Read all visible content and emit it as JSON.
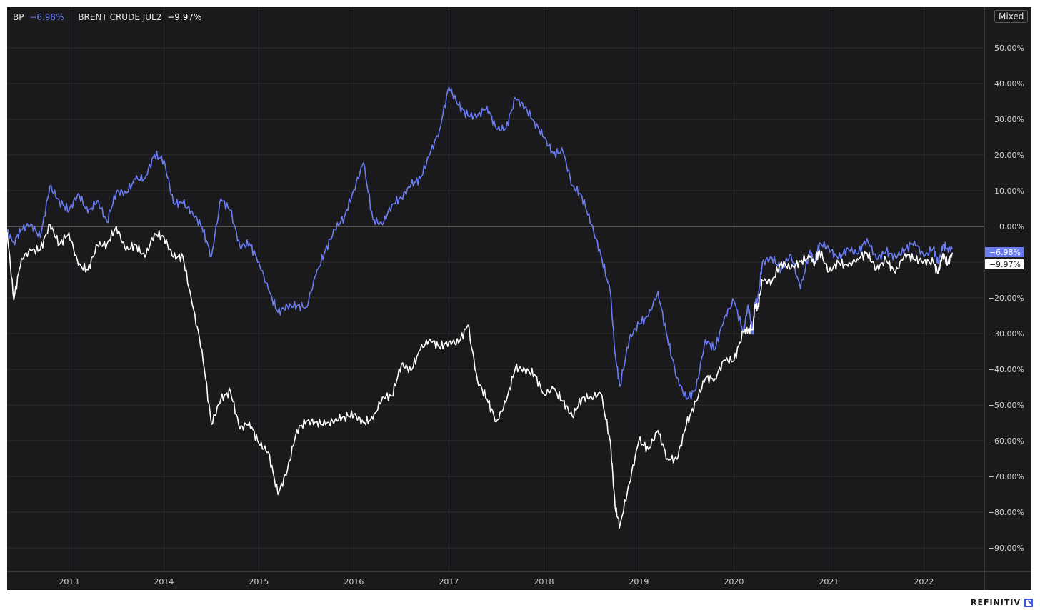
{
  "legend": {
    "bp_label": "BP",
    "bp_value": "−6.98%",
    "brent_label": "BRENT CRUDE JUL2",
    "brent_value": "−9.97%"
  },
  "controls": {
    "mode_label": "Mixed"
  },
  "brand": {
    "name": "REFINITIV"
  },
  "colors": {
    "background": "#1a1a1c",
    "bp": "#6b7cf0",
    "brent": "#ffffff",
    "grid": "#2e2e31"
  },
  "chart_data": {
    "type": "line",
    "y_unit": "%",
    "ylim": [
      -100,
      60
    ],
    "xlim": [
      2012.35,
      2022.5
    ],
    "y_ticks": [
      50,
      40,
      30,
      20,
      10,
      0,
      -10,
      -20,
      -30,
      -40,
      -50,
      -60,
      -70,
      -80,
      -90
    ],
    "y_tick_labels": [
      "50.00%",
      "40.00%",
      "30.00%",
      "20.00%",
      "10.00%",
      "0.00%",
      "−10.00%",
      "−20.00%",
      "−30.00%",
      "−40.00%",
      "−50.00%",
      "−60.00%",
      "−70.00%",
      "−80.00%",
      "−90.00%"
    ],
    "x_ticks": [
      "2013",
      "2014",
      "2015",
      "2016",
      "2017",
      "2018",
      "2019",
      "2020",
      "2021",
      "2022"
    ],
    "grid": true,
    "legend_position": "top-left",
    "last_value_tags": [
      {
        "series": "BP",
        "label": "−6.98%",
        "value": -6.98
      },
      {
        "series": "BRENT CRUDE JUL2",
        "label": "−9.97%",
        "value": -9.97
      }
    ],
    "series": [
      {
        "name": "BP",
        "color": "#6b7cf0",
        "x": [
          2012.35,
          2012.42,
          2012.5,
          2012.6,
          2012.7,
          2012.8,
          2012.9,
          2013.0,
          2013.1,
          2013.2,
          2013.3,
          2013.4,
          2013.5,
          2013.6,
          2013.7,
          2013.8,
          2013.9,
          2014.0,
          2014.1,
          2014.2,
          2014.3,
          2014.4,
          2014.5,
          2014.6,
          2014.7,
          2014.8,
          2014.9,
          2015.0,
          2015.1,
          2015.2,
          2015.3,
          2015.4,
          2015.5,
          2015.6,
          2015.7,
          2015.8,
          2015.9,
          2016.0,
          2016.1,
          2016.2,
          2016.3,
          2016.4,
          2016.5,
          2016.6,
          2016.7,
          2016.8,
          2016.9,
          2017.0,
          2017.1,
          2017.2,
          2017.3,
          2017.4,
          2017.5,
          2017.6,
          2017.7,
          2017.8,
          2017.9,
          2018.0,
          2018.1,
          2018.2,
          2018.3,
          2018.4,
          2018.5,
          2018.6,
          2018.7,
          2018.75,
          2018.8,
          2018.9,
          2019.0,
          2019.1,
          2019.2,
          2019.3,
          2019.4,
          2019.5,
          2019.6,
          2019.7,
          2019.8,
          2019.9,
          2020.0,
          2020.1,
          2020.15,
          2020.2,
          2020.22,
          2020.25,
          2020.3,
          2020.4,
          2020.5,
          2020.6,
          2020.7,
          2020.8,
          2020.85,
          2020.9,
          2021.0,
          2021.1,
          2021.2,
          2021.3,
          2021.4,
          2021.5,
          2021.6,
          2021.7,
          2021.8,
          2021.9,
          2022.0,
          2022.1,
          2022.15,
          2022.2,
          2022.25,
          2022.3
        ],
        "y": [
          -3,
          -6,
          2,
          0,
          -1,
          8,
          7,
          5,
          10,
          6,
          4,
          2,
          8,
          12,
          14,
          12,
          20,
          16,
          10,
          6,
          5,
          -2,
          -10,
          10,
          4,
          -3,
          -8,
          -10,
          -18,
          -23,
          -20,
          -25,
          -22,
          -16,
          -4,
          0,
          2,
          10,
          15,
          5,
          0,
          8,
          6,
          10,
          15,
          20,
          30,
          36,
          34,
          30,
          32,
          36,
          25,
          28,
          33,
          36,
          30,
          25,
          20,
          18,
          14,
          8,
          3,
          -10,
          -20,
          -35,
          -45,
          -28,
          -30,
          -25,
          -20,
          -30,
          -40,
          -50,
          -45,
          -35,
          -32,
          -25,
          -20,
          -30,
          -25,
          -28,
          -22,
          -18,
          -12,
          -10,
          -12,
          -8,
          -14,
          -9,
          -10,
          -7,
          -5,
          -7,
          -6.98,
          -6.98,
          -6.98,
          -6.98,
          -6.98,
          -6.98,
          -6.98,
          -6.98,
          -6.98,
          -6.98,
          -6.98,
          -6.98,
          -6.98,
          -6.98
        ]
      },
      {
        "name": "BRENT CRUDE JUL2",
        "color": "#ffffff",
        "x": [
          2012.35,
          2012.42,
          2012.5,
          2012.6,
          2012.7,
          2012.8,
          2012.9,
          2013.0,
          2013.1,
          2013.2,
          2013.3,
          2013.4,
          2013.5,
          2013.6,
          2013.7,
          2013.8,
          2013.9,
          2014.0,
          2014.1,
          2014.2,
          2014.3,
          2014.4,
          2014.5,
          2014.6,
          2014.7,
          2014.8,
          2014.9,
          2015.0,
          2015.1,
          2015.2,
          2015.3,
          2015.4,
          2015.5,
          2015.6,
          2015.7,
          2015.8,
          2015.9,
          2016.0,
          2016.1,
          2016.2,
          2016.3,
          2016.4,
          2016.5,
          2016.6,
          2016.7,
          2016.8,
          2016.9,
          2017.0,
          2017.1,
          2017.2,
          2017.3,
          2017.4,
          2017.5,
          2017.6,
          2017.7,
          2017.8,
          2017.9,
          2018.0,
          2018.1,
          2018.2,
          2018.3,
          2018.4,
          2018.5,
          2018.6,
          2018.7,
          2018.75,
          2018.8,
          2018.9,
          2019.0,
          2019.1,
          2019.2,
          2019.3,
          2019.4,
          2019.5,
          2019.6,
          2019.7,
          2019.8,
          2019.9,
          2020.0,
          2020.1,
          2020.15,
          2020.2,
          2020.22,
          2020.25,
          2020.3,
          2020.4,
          2020.5,
          2020.6,
          2020.7,
          2020.8,
          2020.85,
          2020.9,
          2021.0,
          2021.1,
          2021.2,
          2021.3,
          2021.4,
          2021.5,
          2021.6,
          2021.7,
          2021.8,
          2021.9,
          2022.0,
          2022.1,
          2022.15,
          2022.2,
          2022.25,
          2022.3
        ],
        "y": [
          -5,
          -20,
          -8,
          -6,
          -5,
          -3,
          -4,
          -3,
          -8,
          -12,
          -7,
          -5,
          -2,
          -3,
          -6,
          -8,
          -4,
          -4,
          -6,
          -9,
          -20,
          -38,
          -55,
          -48,
          -45,
          -55,
          -58,
          -60,
          -65,
          -72,
          -68,
          -58,
          -55,
          -57,
          -52,
          -55,
          -52,
          -55,
          -56,
          -52,
          -48,
          -45,
          -42,
          -40,
          -35,
          -30,
          -32,
          -35,
          -32,
          -30,
          -40,
          -48,
          -55,
          -50,
          -42,
          -37,
          -42,
          -45,
          -48,
          -50,
          -52,
          -48,
          -45,
          -50,
          -60,
          -80,
          -82,
          -70,
          -62,
          -62,
          -60,
          -62,
          -65,
          -55,
          -50,
          -45,
          -40,
          -38,
          -35,
          -32,
          -30,
          -28,
          -22,
          -20,
          -18,
          -15,
          -12,
          -10,
          -8,
          -9.97,
          -9.97,
          -9.97,
          -9.97,
          -9.97,
          -9.97,
          -9.97,
          -9.97,
          -9.97,
          -9.97,
          -9.97,
          -9.97,
          -9.97,
          -9.97,
          -9.97,
          -9.97,
          -9.97,
          -9.97,
          -9.97
        ]
      }
    ]
  }
}
